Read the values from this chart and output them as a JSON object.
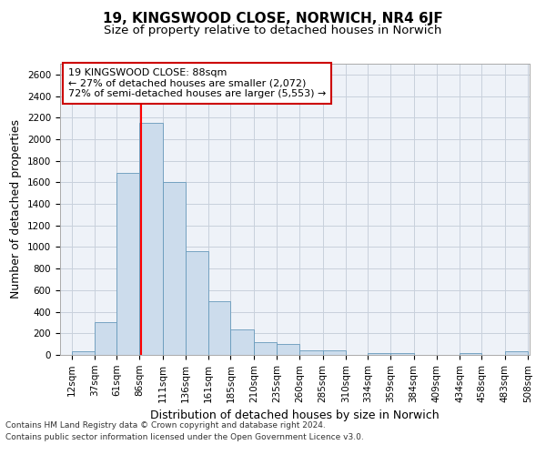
{
  "title": "19, KINGSWOOD CLOSE, NORWICH, NR4 6JF",
  "subtitle": "Size of property relative to detached houses in Norwich",
  "xlabel": "Distribution of detached houses by size in Norwich",
  "ylabel": "Number of detached properties",
  "footnote1": "Contains HM Land Registry data © Crown copyright and database right 2024.",
  "footnote2": "Contains public sector information licensed under the Open Government Licence v3.0.",
  "annotation_line1": "19 KINGSWOOD CLOSE: 88sqm",
  "annotation_line2": "← 27% of detached houses are smaller (2,072)",
  "annotation_line3": "72% of semi-detached houses are larger (5,553) →",
  "bin_edges": [
    12,
    37,
    61,
    86,
    111,
    136,
    161,
    185,
    210,
    235,
    260,
    285,
    310,
    334,
    359,
    384,
    409,
    434,
    458,
    483,
    508
  ],
  "bar_values": [
    30,
    300,
    1690,
    2150,
    1600,
    960,
    500,
    240,
    120,
    100,
    40,
    40,
    0,
    20,
    20,
    0,
    0,
    20,
    0,
    30
  ],
  "bar_color": "#ccdcec",
  "bar_edge_color": "#6699bb",
  "red_line_x": 88,
  "ylim": [
    0,
    2700
  ],
  "yticks": [
    0,
    200,
    400,
    600,
    800,
    1000,
    1200,
    1400,
    1600,
    1800,
    2000,
    2200,
    2400,
    2600
  ],
  "background_color": "#eef2f8",
  "grid_color": "#c8d0dc",
  "title_fontsize": 11,
  "subtitle_fontsize": 9.5,
  "axis_label_fontsize": 9,
  "tick_fontsize": 7.5,
  "annotation_fontsize": 8,
  "footnote_fontsize": 6.5
}
